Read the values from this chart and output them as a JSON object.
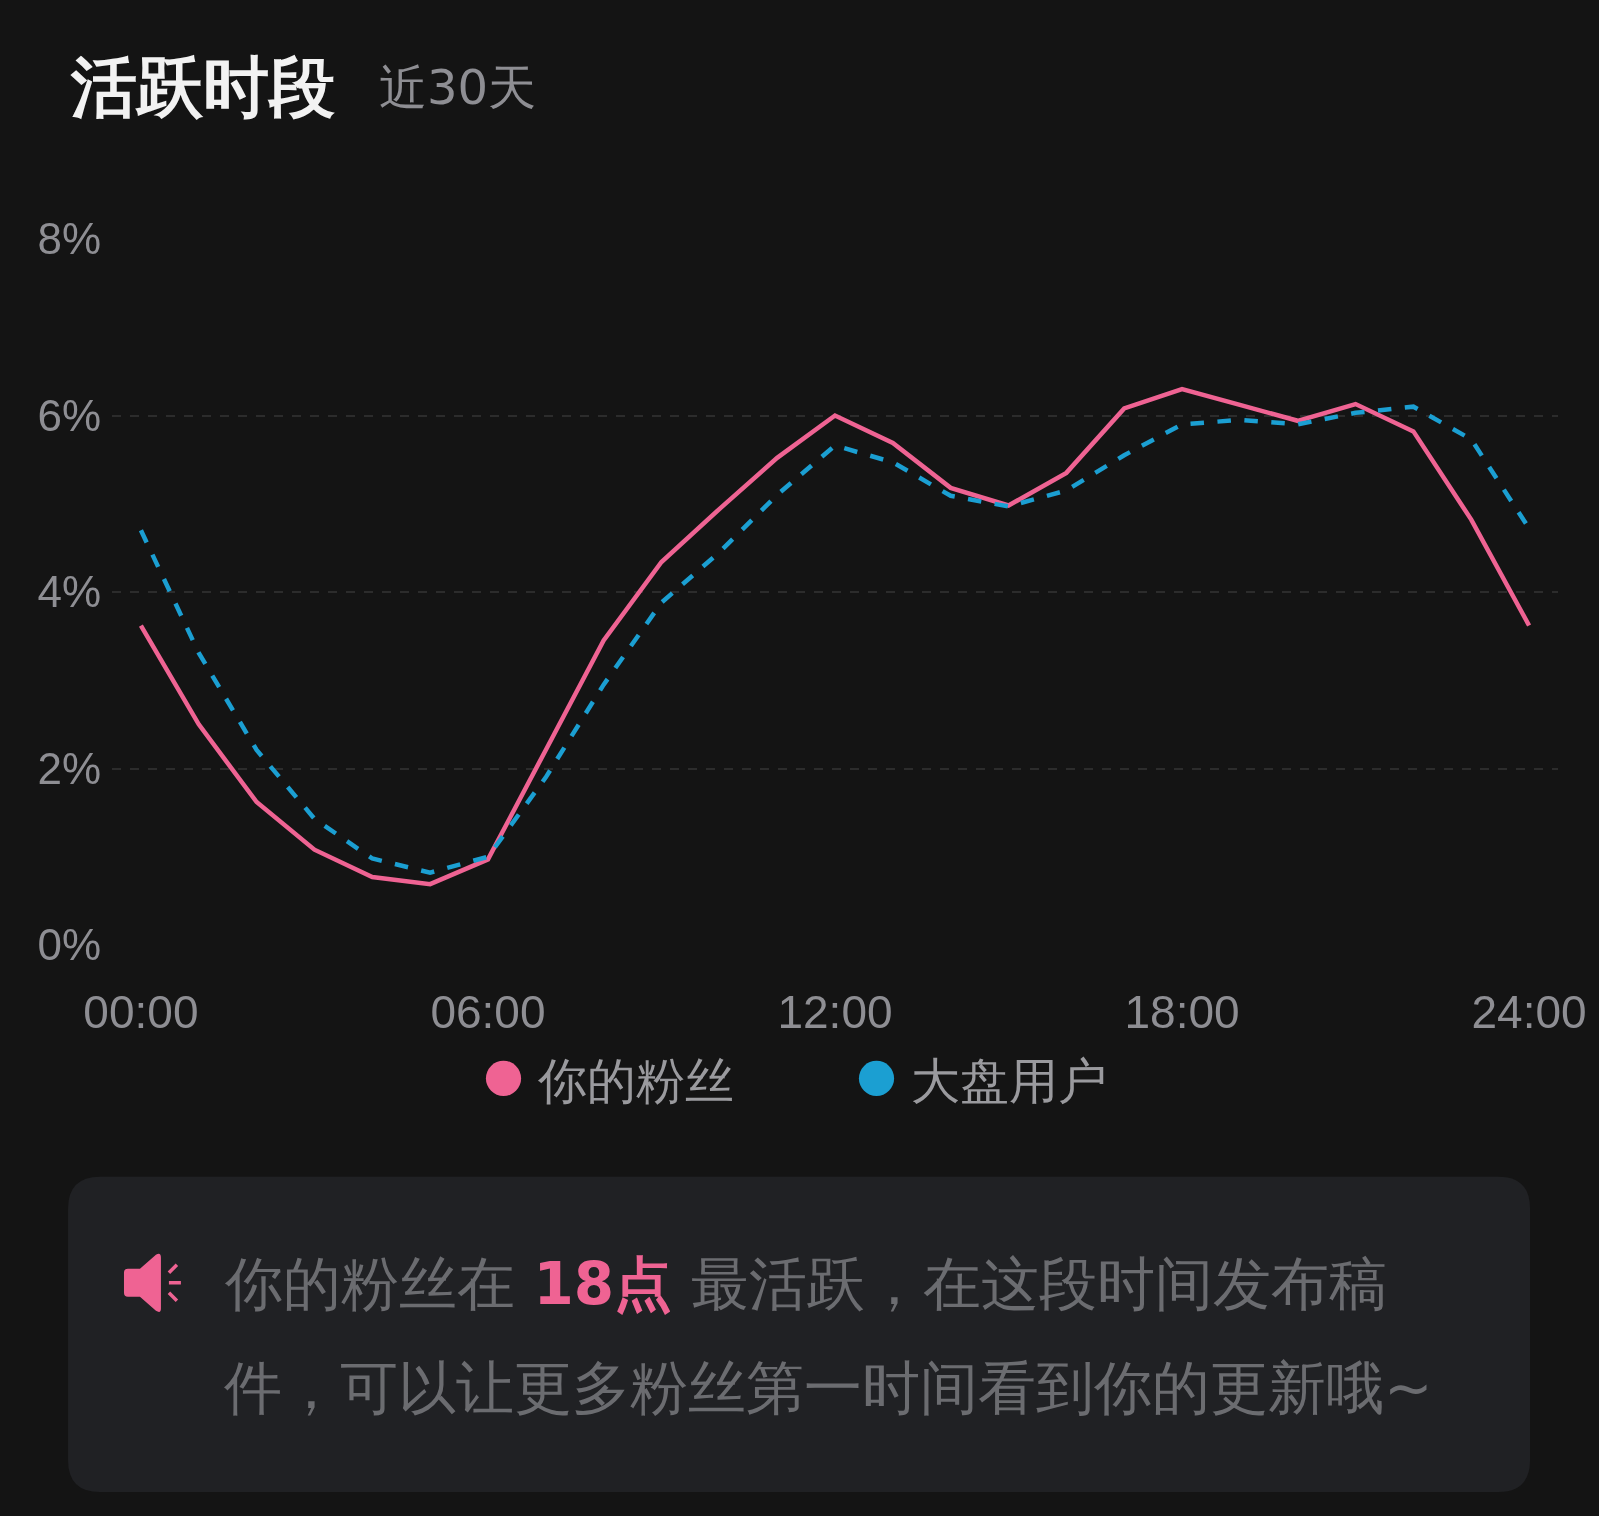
{
  "chart_data": {
    "type": "line",
    "title": "活跃时段",
    "subtitle": "近30天",
    "x": [
      0,
      1,
      2,
      3,
      4,
      5,
      6,
      7,
      8,
      9,
      10,
      11,
      12,
      13,
      14,
      15,
      16,
      17,
      18,
      19,
      20,
      21,
      22,
      23,
      24
    ],
    "xlim": [
      -0.5,
      24.5
    ],
    "xticks": [
      {
        "value": 0,
        "label": "00:00"
      },
      {
        "value": 6,
        "label": "06:00"
      },
      {
        "value": 12,
        "label": "12:00"
      },
      {
        "value": 18,
        "label": "18:00"
      },
      {
        "value": 24,
        "label": "24:00"
      }
    ],
    "ylim": [
      0,
      8
    ],
    "yticks": [
      {
        "value": 0,
        "label": "0%"
      },
      {
        "value": 2,
        "label": "2%"
      },
      {
        "value": 4,
        "label": "4%"
      },
      {
        "value": 6,
        "label": "6%"
      },
      {
        "value": 8,
        "label": "8%"
      }
    ],
    "grid": "y",
    "legend": "bottom",
    "series": [
      {
        "name": "你的粉丝",
        "color": "#ef6393",
        "line_style": "solid",
        "values": [
          3.62,
          2.5,
          1.62,
          1.08,
          0.77,
          0.69,
          0.97,
          2.21,
          3.45,
          4.34,
          4.94,
          5.52,
          6.0,
          5.69,
          5.18,
          4.98,
          5.35,
          6.08,
          6.3,
          6.12,
          5.94,
          6.13,
          5.82,
          4.82,
          3.62
        ]
      },
      {
        "name": "大盘用户",
        "color": "#1b9fd2",
        "line_style": "dashed",
        "values": [
          4.7,
          3.31,
          2.21,
          1.43,
          0.98,
          0.82,
          1.0,
          1.9,
          2.95,
          3.88,
          4.45,
          5.1,
          5.66,
          5.47,
          5.09,
          4.97,
          5.15,
          5.55,
          5.9,
          5.95,
          5.9,
          6.03,
          6.1,
          5.73,
          4.72
        ]
      }
    ],
    "annotations": [
      "你的粉丝在",
      "18点",
      "最活跃，在这段时间发布稿件，可以让更多粉丝第一时间看到你的更新哦~"
    ]
  }
}
